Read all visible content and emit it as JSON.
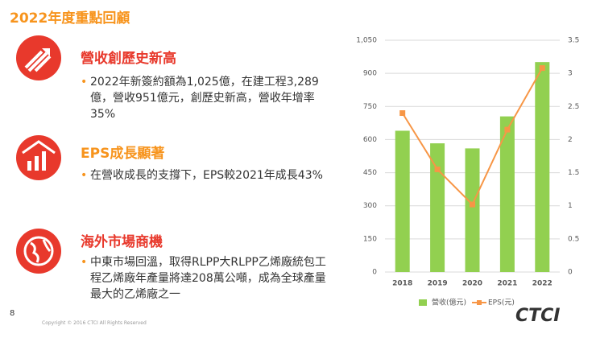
{
  "header": {
    "title": "2022年度重點回顧"
  },
  "sections": [
    {
      "heading": "營收創歷史新高",
      "text": "2022年新簽約額為1,025億，在建工程3,289億，營收951億元，創歷史新高，營收年增率35%"
    },
    {
      "heading": "EPS成長顯著",
      "text": "在營收成長的支撐下，EPS較2021年成長43%"
    },
    {
      "heading": "海外市場商機",
      "text": "中東市場回溫，取得RLPP大RLPP乙烯廠統包工程乙烯廠年產量將達208萬公噸，成為全球產量最大的乙烯廠之一"
    }
  ],
  "footer": {
    "page": "8",
    "copyright": "Copyright © 2016 CTCI All Rights Reserved",
    "logo": "CTCI"
  },
  "chart_data": {
    "type": "bar",
    "categories": [
      "2018",
      "2019",
      "2020",
      "2021",
      "2022"
    ],
    "series": [
      {
        "name": "營收(億元)",
        "type": "bar",
        "color": "#92d050",
        "values": [
          640,
          583,
          560,
          705,
          951
        ]
      },
      {
        "name": "EPS(元)",
        "type": "line",
        "axis": "y2",
        "color": "#f79646",
        "values": [
          2.4,
          1.55,
          1.02,
          2.15,
          3.08
        ]
      }
    ],
    "ylim": [
      0,
      1050
    ],
    "yticks": [
      0,
      150,
      300,
      450,
      600,
      750,
      900,
      {
        "value": 1050,
        "label": "1,050"
      }
    ],
    "y2lim": [
      0,
      3.5
    ],
    "y2ticks": [
      0,
      0.5,
      1,
      1.5,
      2,
      2.5,
      3,
      3.5
    ],
    "grid": true,
    "legend": "bottom"
  }
}
